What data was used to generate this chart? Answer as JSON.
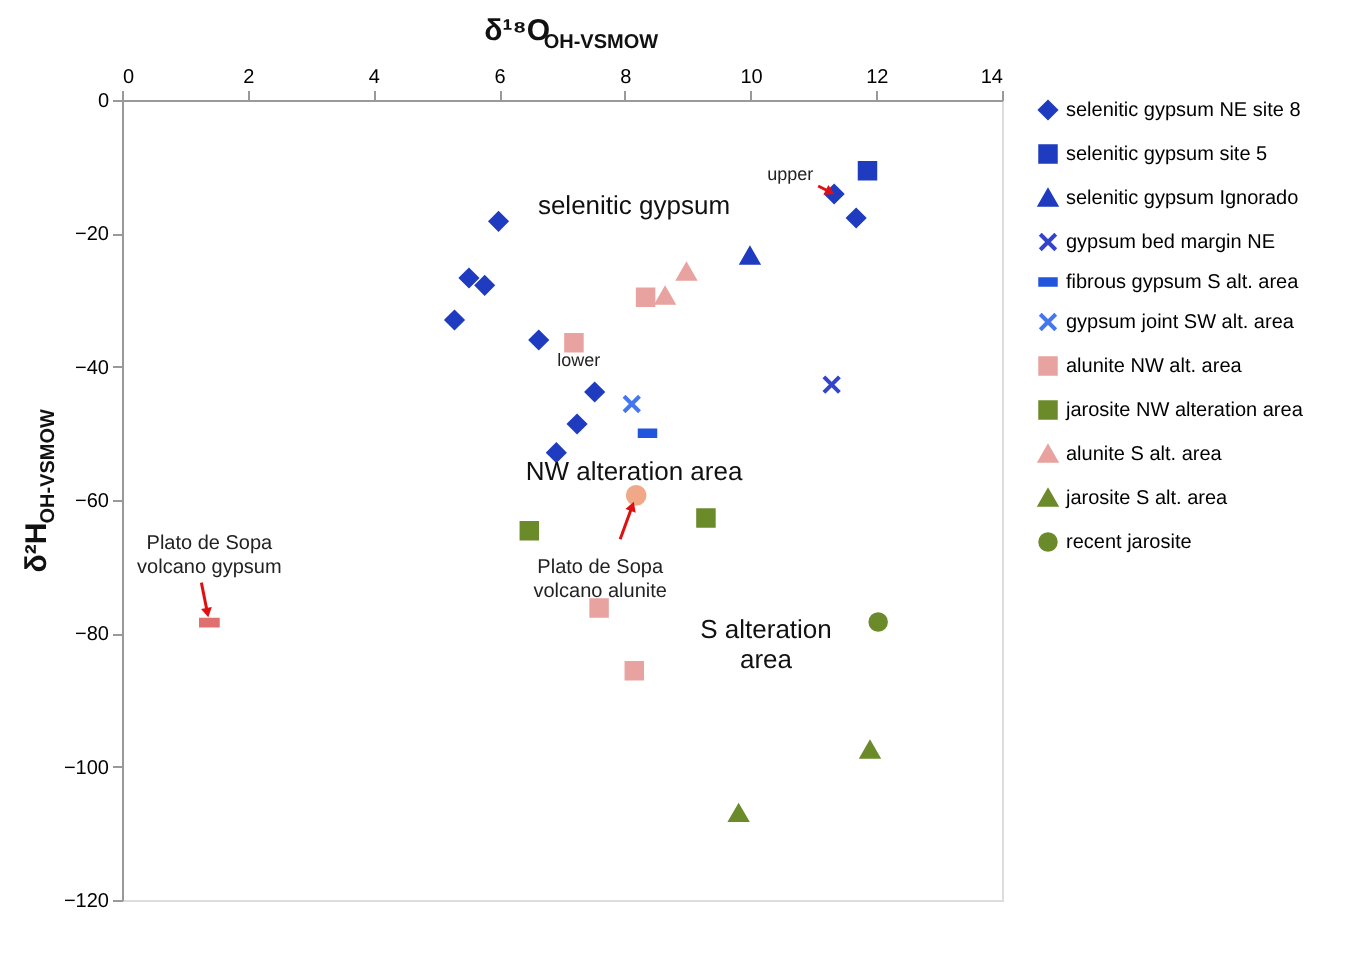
{
  "chart_data": {
    "type": "scatter",
    "xlabel": "δ¹⁸O$_{OH-VSMOW}$",
    "ylabel": "δ²H$_{OH-VSMOW}$",
    "xlim": [
      0,
      14
    ],
    "xticks": [
      0,
      2,
      4,
      6,
      8,
      10,
      12,
      14
    ],
    "ylim": [
      -120,
      0
    ],
    "yticks": [
      0,
      -20,
      -40,
      -60,
      -80,
      -100,
      -120
    ],
    "grid": false,
    "legend": "right",
    "series": [
      {
        "name": "selenitic gypsum NE site 8",
        "color": "#1f3bbf",
        "marker": "diamond",
        "x": [
          5.52,
          5.77,
          5.99,
          5.29,
          6.63,
          7.52,
          7.24,
          6.91,
          11.33,
          11.68
        ],
        "values": [
          -26.7,
          -27.8,
          -18.2,
          -33.0,
          -36.0,
          -43.8,
          -48.6,
          -52.9,
          -14.1,
          -17.7
        ]
      },
      {
        "name": "selenitic gypsum site 5",
        "color": "#1f3bbf",
        "marker": "square",
        "x": [
          11.86
        ],
        "values": [
          -10.6
        ]
      },
      {
        "name": "selenitic gypsum Ignorado",
        "color": "#1f3bbf",
        "marker": "triangle",
        "x": [
          9.99
        ],
        "values": [
          -23.4
        ]
      },
      {
        "name": "gypsum bed margin NE",
        "color": "#3344cc",
        "marker": "cross",
        "x": [
          11.29
        ],
        "values": [
          -42.7
        ]
      },
      {
        "name": "fibrous gypsum S alt. area",
        "color": "#2255dd",
        "x": [
          8.36
        ],
        "values": [
          -50.0
        ]
      },
      {
        "name": "gypsum joint SW alt. area",
        "color": "#4477ee",
        "marker": "cross",
        "x": [
          8.11
        ],
        "values": [
          -45.6
        ]
      },
      {
        "name": "alunite NW alt. area",
        "color": "#e8a3a0",
        "marker": "square",
        "x": [
          8.33,
          7.19,
          7.59,
          8.15
        ],
        "values": [
          -29.6,
          -36.4,
          -76.2,
          -85.6
        ]
      },
      {
        "name": "jarosite NW alteration area",
        "color": "#6b8a2a",
        "marker": "square",
        "x": [
          6.48,
          9.29
        ],
        "values": [
          -64.6,
          -62.7
        ]
      },
      {
        "name": "alunite S alt. area",
        "color": "#e8a3a0",
        "marker": "triangle",
        "x": [
          8.98,
          8.64
        ],
        "values": [
          -25.8,
          -29.4
        ]
      },
      {
        "name": "jarosite S alt. area",
        "color": "#6b8a2a",
        "marker": "triangle",
        "x": [
          9.81,
          11.9
        ],
        "values": [
          -107.0,
          -97.5
        ]
      },
      {
        "name": "recent jarosite",
        "color": "#6b8a2a",
        "marker": "circle",
        "x": [
          12.03
        ],
        "values": [
          -78.3
        ]
      },
      {
        "color": "#f0a888",
        "marker": "circle",
        "x": [
          8.18
        ],
        "values": [
          -59.3
        ]
      },
      {
        "color": "#e07070",
        "x": [
          1.39
        ],
        "values": [
          -78.4
        ]
      }
    ],
    "annotations": [
      "selenitic gypsum",
      "NW alteration area",
      "S alteration\narea",
      {
        "text": "Plato de Sopa\nvolcano alunite",
        "x": 8.18,
        "y": -59.3
      },
      {
        "text": "Plato de Sopa\nvolcano gypsum",
        "x": 1.39,
        "y": -78.4
      },
      {
        "text": "upper",
        "x": 11.33,
        "y": -14.1
      },
      {
        "text": "lower",
        "x": 7.52,
        "y": -43.8
      }
    ]
  }
}
